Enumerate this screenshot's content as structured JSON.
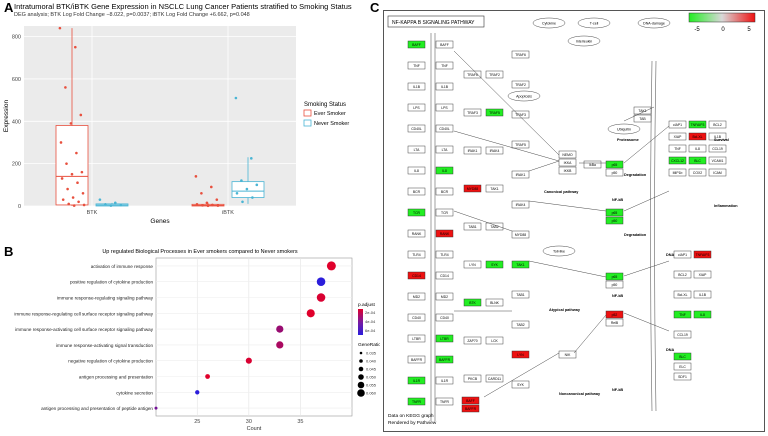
{
  "panelA": {
    "letter": "A",
    "title": "Intratumoral BTK/iBTK Gene Expression in NSCLC Lung Cancer Patients stratified to Smoking Status",
    "subtitle": "DEG analysis; BTK Log Fold Change −8.022, p=0.0037; iBTK Log Fold Change +6.662, p=0.048",
    "chart_data": {
      "type": "box",
      "categories": [
        "BTK",
        "iBTK"
      ],
      "xlabel": "Genes",
      "ylabel": "Expression",
      "ylim": [
        0,
        850
      ],
      "yticks": [
        0,
        200,
        400,
        600,
        800
      ],
      "legend_title": "Smoking Status",
      "legend_position": "right",
      "series": [
        {
          "name": "Ever Smoker",
          "color": "#e8503e",
          "boxes": [
            {
              "category": "BTK",
              "q1": 5,
              "median": 140,
              "q3": 380,
              "whisker_low": 0,
              "whisker_high": 840
            },
            {
              "category": "iBTK",
              "q1": 0,
              "median": 3,
              "q3": 8,
              "whisker_low": 0,
              "whisker_high": 15
            }
          ],
          "points": [
            {
              "category": "BTK",
              "values": [
                840,
                750,
                560,
                430,
                390,
                300,
                250,
                200,
                160,
                150,
                130,
                110,
                80,
                60,
                40,
                30,
                20,
                10,
                5,
                2
              ]
            },
            {
              "category": "iBTK",
              "values": [
                140,
                90,
                60,
                30,
                15,
                8,
                5,
                3,
                2,
                1
              ]
            }
          ]
        },
        {
          "name": "Never Smoker",
          "color": "#4ab5d4",
          "boxes": [
            {
              "category": "BTK",
              "q1": 0,
              "median": 5,
              "q3": 10,
              "whisker_low": 0,
              "whisker_high": 15
            },
            {
              "category": "iBTK",
              "q1": 40,
              "median": 70,
              "q3": 115,
              "whisker_low": 10,
              "whisker_high": 230
            }
          ],
          "points": [
            {
              "category": "BTK",
              "values": [
                30,
                15,
                8,
                5,
                2
              ]
            },
            {
              "category": "iBTK",
              "values": [
                510,
                225,
                120,
                100,
                80,
                60,
                40,
                20
              ]
            }
          ]
        }
      ]
    }
  },
  "panelB": {
    "letter": "B",
    "title": "Up regulated Biological Processes in Ever smokers compared to Never smokers",
    "chart_data": {
      "type": "scatter",
      "xlabel": "Count",
      "xlim": [
        21,
        40
      ],
      "xticks": [
        25,
        30,
        35
      ],
      "categories": [
        "activation of immune response",
        "positive regulation of cytokine production",
        "immune response-regulating signaling pathway",
        "immune response-regulating cell surface receptor signaling pathway",
        "immune response-activating cell surface receptor signaling pathway",
        "immune response-activating signal transduction",
        "negative regulation of cytokine production",
        "antigen processing and presentation",
        "cytokine secretion",
        "antigen processing and presentation of peptide antigen"
      ],
      "points": [
        {
          "count": 38,
          "p_adjust": 0.0001,
          "gene_ratio": 0.06
        },
        {
          "count": 37,
          "p_adjust": 0.0006,
          "gene_ratio": 0.058
        },
        {
          "count": 37,
          "p_adjust": 0.00012,
          "gene_ratio": 0.058
        },
        {
          "count": 36,
          "p_adjust": 0.0001,
          "gene_ratio": 0.056
        },
        {
          "count": 33,
          "p_adjust": 0.0003,
          "gene_ratio": 0.052
        },
        {
          "count": 33,
          "p_adjust": 0.00025,
          "gene_ratio": 0.052
        },
        {
          "count": 30,
          "p_adjust": 0.00012,
          "gene_ratio": 0.047
        },
        {
          "count": 26,
          "p_adjust": 0.0001,
          "gene_ratio": 0.041
        },
        {
          "count": 25,
          "p_adjust": 0.0006,
          "gene_ratio": 0.039
        },
        {
          "count": 21,
          "p_adjust": 0.0004,
          "gene_ratio": 0.033
        }
      ],
      "color_legend": {
        "title": "p.adjust",
        "labels": [
          "2e-04",
          "4e-04",
          "6e-04"
        ],
        "colors": [
          "#e0002b",
          "#7a1aa0",
          "#2b1ddb"
        ]
      },
      "size_legend": {
        "title": "GeneRatio",
        "labels": [
          "0.035",
          "0.040",
          "0.045",
          "0.050",
          "0.055",
          "0.060"
        ]
      }
    }
  },
  "panelC": {
    "letter": "C",
    "pathway_title": "NF-KAPPA B SIGNALING PATHWAY",
    "scale_labels": [
      "-5",
      "0",
      "5"
    ],
    "colors": {
      "low": "#22ee22",
      "mid": "#d8d8d8",
      "high": "#ee1111"
    },
    "footer_1": "Data on KEGG graph",
    "footer_2": "Rendered by Pathview",
    "pathway_labels": {
      "canonical": "Canonical pathway",
      "atypical": "Atypical pathway",
      "noncanonical": "Noncanonical pathway",
      "proteasome": "Proteasome",
      "survival": "Survival",
      "inflammation": "Inflammation",
      "degradation": "Degradation",
      "dna": "DNA",
      "nfkb": "NF-kB"
    },
    "genes_left": [
      "BAFF",
      "TNF",
      "IL1B",
      "LPS",
      "CD40L",
      "LTA",
      "IL8",
      "BCR",
      "TCR",
      "RANK",
      "TLR4",
      "CD14",
      "MD2",
      "CD40",
      "LTBR",
      "BAFFR",
      "IL1R",
      "TNFR"
    ],
    "genes_mid": [
      "TRAF6",
      "TRAF2",
      "TRAF3",
      "TRAF5",
      "IRAK1",
      "IRAK4",
      "MYD88",
      "TAK1",
      "TAB1",
      "TAB2",
      "LYN",
      "SYK",
      "BTK",
      "BLNK",
      "ZAP70",
      "LCK",
      "PKCB",
      "CARD11"
    ],
    "genes_core": [
      "NEMO",
      "IKKA",
      "IKKB",
      "IkBa",
      "p65",
      "p50",
      "NIK",
      "p52",
      "RelB"
    ],
    "genes_right": [
      "cIAP1",
      "TNFAIP3",
      "BCL2",
      "XIAP",
      "Bcl-XL",
      "IL1B",
      "TNF",
      "IL8",
      "CCL19",
      "CXCL12",
      "BLC",
      "VCAM1",
      "MIP1b",
      "COX2",
      "ICAM"
    ]
  }
}
